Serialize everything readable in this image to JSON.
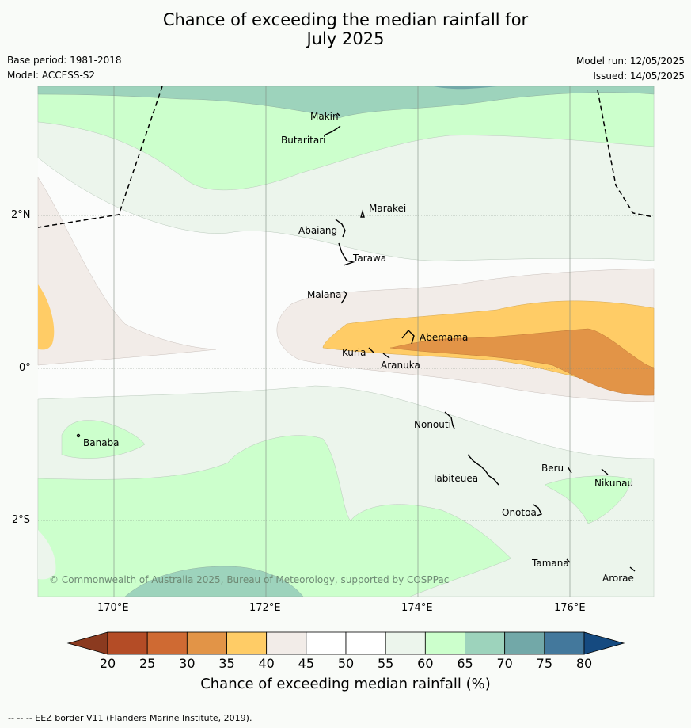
{
  "title_line1": "Chance of exceeding the median rainfall for",
  "title_line2": "July 2025",
  "base_period": "Base period: 1981-2018",
  "model": "Model: ACCESS-S2",
  "model_run": "Model run: 12/05/2025",
  "issued": "Issued: 14/05/2025",
  "copyright": "© Commonwealth of Australia 2025, Bureau of Meteorology, supported by COSPPac",
  "lon_labels": [
    "170°E",
    "172°E",
    "174°E",
    "176°E"
  ],
  "lat_labels": [
    "2°N",
    "0°",
    "2°S"
  ],
  "places": [
    {
      "name": "Makin"
    },
    {
      "name": "Butaritari"
    },
    {
      "name": "Marakei"
    },
    {
      "name": "Abaiang"
    },
    {
      "name": "Tarawa"
    },
    {
      "name": "Maiana"
    },
    {
      "name": "Abemama"
    },
    {
      "name": "Kuria"
    },
    {
      "name": "Aranuka"
    },
    {
      "name": "Banaba"
    },
    {
      "name": "Nonouti"
    },
    {
      "name": "Beru"
    },
    {
      "name": "Tabiteuea"
    },
    {
      "name": "Nikunau"
    },
    {
      "name": "Onotoa"
    },
    {
      "name": "Tamana"
    },
    {
      "name": "Arorae"
    }
  ],
  "colorbar": {
    "labels": [
      "20",
      "25",
      "30",
      "35",
      "40",
      "45",
      "50",
      "55",
      "60",
      "65",
      "70",
      "75",
      "80"
    ],
    "colors": [
      "#8b3a1f",
      "#b44c26",
      "#cf6a33",
      "#e29447",
      "#ffcc66",
      "#f2ece8",
      "#ffffff",
      "#ffffff",
      "#ecf5ec",
      "#ccffcc",
      "#9dd3bc",
      "#72a8a8",
      "#43789c",
      "#154a80"
    ],
    "title": "Chance of exceeding median rainfall (%)"
  },
  "footer": "--  --  -- EEZ border V11 (Flanders Marine Institute, 2019)."
}
